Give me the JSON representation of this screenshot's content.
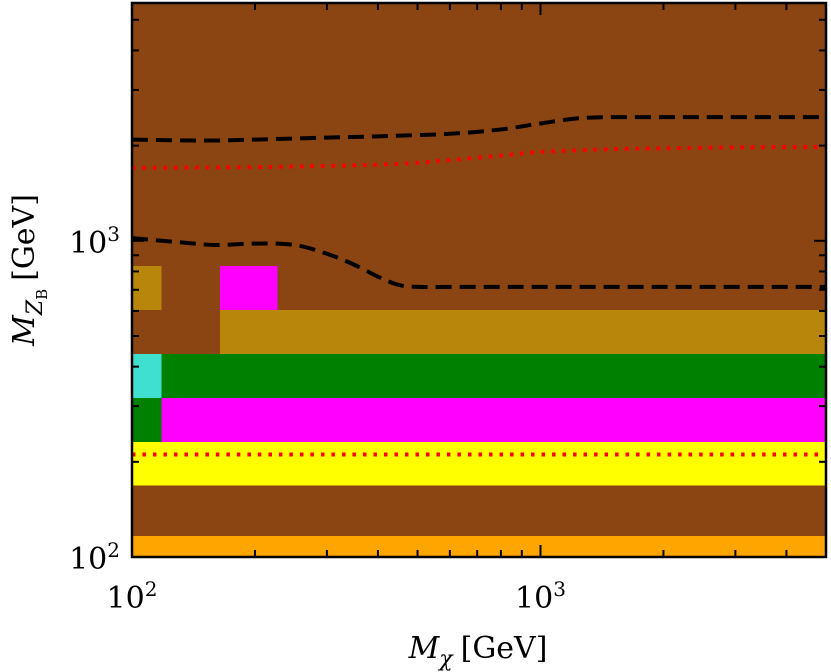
{
  "chart_data": {
    "type": "heatmap",
    "title": "",
    "x_scale": "log",
    "y_scale": "log",
    "xlim": [
      100,
      5000
    ],
    "ylim": [
      100,
      5650
    ],
    "xlabel": {
      "symbol": "M",
      "subscript": "χ",
      "unit": "[GeV]"
    },
    "ylabel": {
      "symbol": "M",
      "subscript": "Z",
      "subsubscript": "B",
      "unit": "[GeV]"
    },
    "x_tick_labels": [
      {
        "value": 100,
        "base": "10",
        "exp": "2"
      },
      {
        "value": 1000,
        "base": "10",
        "exp": "3"
      }
    ],
    "y_tick_labels": [
      {
        "value": 100,
        "base": "10",
        "exp": "2"
      },
      {
        "value": 1000,
        "base": "10",
        "exp": "3"
      }
    ],
    "colors": {
      "brown": "#8B4513",
      "goldenrod": "#B8860B",
      "magenta": "#FF00FF",
      "green": "#008000",
      "turquoise": "#40E0D0",
      "yellow": "#FFFF00",
      "orange": "#FFA500",
      "dashed_line": "#000000",
      "dotted_line": "#FF0000"
    },
    "cells": [
      {
        "x": [
          100,
          5000
        ],
        "y": [
          100,
          117
        ],
        "color": "orange"
      },
      {
        "x": [
          100,
          5000
        ],
        "y": [
          117,
          169
        ],
        "color": "brown"
      },
      {
        "x": [
          100,
          5000
        ],
        "y": [
          169,
          232
        ],
        "color": "yellow"
      },
      {
        "x": [
          100,
          118
        ],
        "y": [
          232,
          319
        ],
        "color": "green"
      },
      {
        "x": [
          118,
          5000
        ],
        "y": [
          232,
          319
        ],
        "color": "magenta"
      },
      {
        "x": [
          100,
          118
        ],
        "y": [
          319,
          440
        ],
        "color": "turquoise"
      },
      {
        "x": [
          118,
          5000
        ],
        "y": [
          319,
          440
        ],
        "color": "green"
      },
      {
        "x": [
          100,
          164
        ],
        "y": [
          440,
          606
        ],
        "color": "brown"
      },
      {
        "x": [
          164,
          5000
        ],
        "y": [
          440,
          606
        ],
        "color": "goldenrod"
      },
      {
        "x": [
          100,
          118
        ],
        "y": [
          606,
          834
        ],
        "color": "goldenrod"
      },
      {
        "x": [
          118,
          164
        ],
        "y": [
          606,
          834
        ],
        "color": "brown"
      },
      {
        "x": [
          164,
          227
        ],
        "y": [
          606,
          834
        ],
        "color": "magenta"
      },
      {
        "x": [
          227,
          5000
        ],
        "y": [
          606,
          834
        ],
        "color": "brown"
      },
      {
        "x": [
          100,
          5000
        ],
        "y": [
          834,
          5650
        ],
        "color": "brown"
      }
    ],
    "series": [
      {
        "name": "upper dashed contour",
        "style": "dashed",
        "color": "dashed_line",
        "x": [
          100,
          150,
          200,
          300,
          400,
          600,
          800,
          1000,
          1300,
          2000,
          3000,
          5000
        ],
        "y": [
          2090,
          2075,
          2090,
          2120,
          2140,
          2180,
          2250,
          2350,
          2450,
          2460,
          2460,
          2460
        ]
      },
      {
        "name": "lower dashed contour",
        "style": "dashed",
        "color": "dashed_line",
        "x": [
          100,
          130,
          160,
          200,
          250,
          300,
          350,
          400,
          450,
          500,
          600,
          800,
          1000,
          2000,
          5000
        ],
        "y": [
          1020,
          990,
          970,
          980,
          970,
          910,
          840,
          770,
          725,
          715,
          715,
          715,
          715,
          715,
          715
        ]
      },
      {
        "name": "upper dotted contour",
        "style": "dotted",
        "color": "dotted_line",
        "x": [
          100,
          200,
          300,
          400,
          500,
          600,
          800,
          1000,
          1500,
          2000,
          3000,
          5000
        ],
        "y": [
          1700,
          1710,
          1725,
          1740,
          1765,
          1800,
          1860,
          1910,
          1950,
          1960,
          1975,
          1980
        ]
      },
      {
        "name": "lower dotted contour",
        "style": "dotted",
        "color": "dotted_line",
        "x": [
          100,
          5000
        ],
        "y": [
          211,
          211
        ]
      }
    ]
  }
}
